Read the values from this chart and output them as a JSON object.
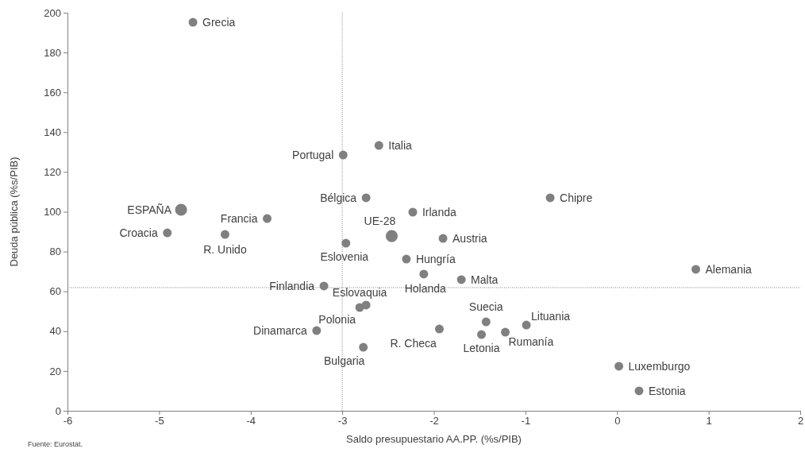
{
  "chart_data": {
    "type": "scatter",
    "xlabel": "Saldo presupuestario AA.PP. (%s/PIB)",
    "ylabel": "Deuda pública (%s/PIB)",
    "xlim": [
      -6,
      2
    ],
    "xticks": [
      -6,
      -5,
      -4,
      -3,
      -2,
      -1,
      0,
      1,
      2
    ],
    "ylim": [
      0,
      200
    ],
    "yticks": [
      0,
      20,
      40,
      60,
      80,
      100,
      120,
      140,
      160,
      180,
      200
    ],
    "grid": false,
    "legend": false,
    "marker": "circle",
    "series": [
      {
        "name": "Grecia",
        "color": "#808080",
        "x": [
          -4.63
        ],
        "values": [
          195.2
        ]
      },
      {
        "name": "Portugal",
        "color": "#808080",
        "x": [
          -2.99
        ],
        "values": [
          128.5
        ]
      },
      {
        "name": "Italia",
        "color": "#808080",
        "x": [
          -2.6
        ],
        "values": [
          133.3
        ]
      },
      {
        "name": "Bélgica",
        "color": "#808080",
        "x": [
          -2.74
        ],
        "values": [
          107
        ]
      },
      {
        "name": "Chipre",
        "color": "#808080",
        "x": [
          -0.73
        ],
        "values": [
          107
        ]
      },
      {
        "name": "ESPAÑA",
        "color": "#808080",
        "x": [
          -4.76
        ],
        "values": [
          101
        ]
      },
      {
        "name": "Irlanda",
        "color": "#808080",
        "x": [
          -2.23
        ],
        "values": [
          99.8
        ]
      },
      {
        "name": "Francia",
        "color": "#808080",
        "x": [
          -3.82
        ],
        "values": [
          96.6
        ]
      },
      {
        "name": "Croacia",
        "color": "#808080",
        "x": [
          -4.91
        ],
        "values": [
          89.4
        ]
      },
      {
        "name": "R. Unido",
        "color": "#808080",
        "x": [
          -4.28
        ],
        "values": [
          88.6
        ]
      },
      {
        "name": "UE-28",
        "color": "#808080",
        "x": [
          -2.46
        ],
        "values": [
          87.8
        ]
      },
      {
        "name": "Austria",
        "color": "#808080",
        "x": [
          -1.9
        ],
        "values": [
          86.6
        ]
      },
      {
        "name": "Eslovenia",
        "color": "#808080",
        "x": [
          -2.96
        ],
        "values": [
          84.2
        ]
      },
      {
        "name": "Hungría",
        "color": "#808080",
        "x": [
          -2.3
        ],
        "values": [
          76.2
        ]
      },
      {
        "name": "Holanda",
        "color": "#808080",
        "x": [
          -2.11
        ],
        "values": [
          68.7
        ]
      },
      {
        "name": "Malta",
        "color": "#808080",
        "x": [
          -1.7
        ],
        "values": [
          65.9
        ]
      },
      {
        "name": "Alemania",
        "color": "#808080",
        "x": [
          0.86
        ],
        "values": [
          71.1
        ]
      },
      {
        "name": "Finlandia",
        "color": "#808080",
        "x": [
          -3.2
        ],
        "values": [
          62.7
        ]
      },
      {
        "name": "Polonia",
        "color": "#808080",
        "x": [
          -2.81
        ],
        "values": [
          51.9
        ]
      },
      {
        "name": "Eslovaquia",
        "color": "#808080",
        "x": [
          -2.74
        ],
        "values": [
          53.1
        ]
      },
      {
        "name": "Dinamarca",
        "color": "#808080",
        "x": [
          -3.28
        ],
        "values": [
          40.3
        ]
      },
      {
        "name": "Bulgaria",
        "color": "#808080",
        "x": [
          -2.77
        ],
        "values": [
          31.9
        ]
      },
      {
        "name": "R. Checa",
        "color": "#808080",
        "x": [
          -1.94
        ],
        "values": [
          41.1
        ]
      },
      {
        "name": "Suecia",
        "color": "#808080",
        "x": [
          -1.43
        ],
        "values": [
          44.7
        ]
      },
      {
        "name": "Letonia",
        "color": "#808080",
        "x": [
          -1.48
        ],
        "values": [
          38.3
        ]
      },
      {
        "name": "Rumanía",
        "color": "#808080",
        "x": [
          -1.22
        ],
        "values": [
          39.5
        ]
      },
      {
        "name": "Lituania",
        "color": "#808080",
        "x": [
          -0.99
        ],
        "values": [
          43.1
        ]
      },
      {
        "name": "Luxemburgo",
        "color": "#808080",
        "x": [
          0.02
        ],
        "values": [
          22.4
        ]
      },
      {
        "name": "Estonia",
        "color": "#808080",
        "x": [
          0.24
        ],
        "values": [
          10
        ]
      }
    ],
    "ref_lines": [
      {
        "axis": "x",
        "value": -3,
        "color": "#808080",
        "line_style": "dotted"
      },
      {
        "axis": "y",
        "value": 61.9,
        "color": "#808080",
        "line_style": "dotted"
      }
    ],
    "annotations": [
      "Fuente: Eurostat."
    ]
  }
}
